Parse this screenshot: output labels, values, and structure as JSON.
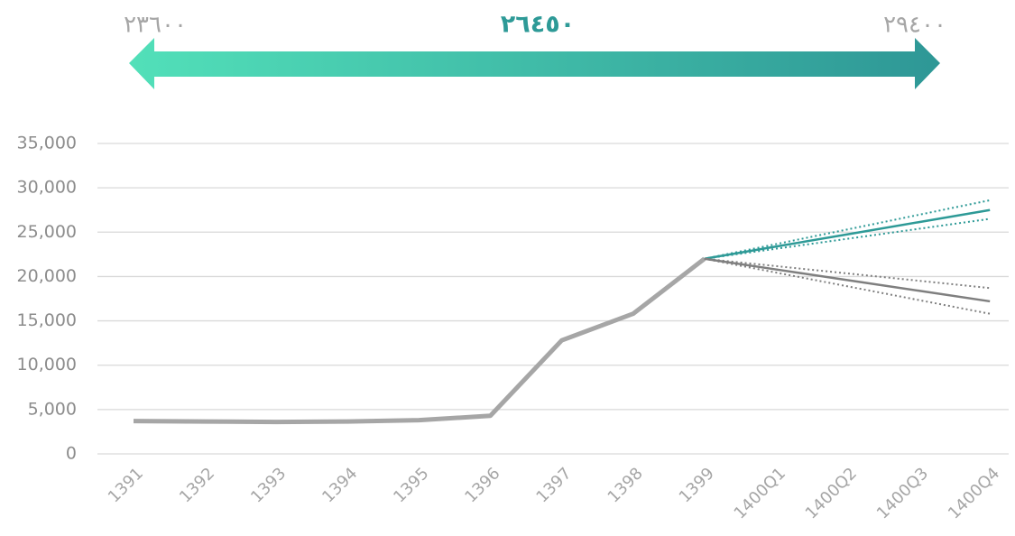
{
  "banner": {
    "left": "٢٣٦٠٠",
    "center": "٢٦٤٥٠",
    "right": "٢٩٤٠٠"
  },
  "chart_data": {
    "type": "line",
    "categories": [
      "1391",
      "1392",
      "1393",
      "1394",
      "1395",
      "1396",
      "1397",
      "1398",
      "1399",
      "1400Q1",
      "1400Q2",
      "1400Q3",
      "1400Q4"
    ],
    "series": [
      {
        "color": "#a6a6a6",
        "width": 5,
        "style": "solid",
        "values": [
          3700,
          3650,
          3600,
          3650,
          3800,
          4300,
          12800,
          15800,
          22000,
          null,
          null,
          null,
          null
        ]
      },
      {
        "color": "#2e9a97",
        "width": 2.5,
        "style": "solid",
        "values": [
          null,
          null,
          null,
          null,
          null,
          null,
          null,
          null,
          22000,
          23375,
          24750,
          26125,
          27500
        ]
      },
      {
        "color": "#2e9a97",
        "width": 2,
        "style": "dotted",
        "values": [
          null,
          null,
          null,
          null,
          null,
          null,
          null,
          null,
          22000,
          23650,
          25300,
          26950,
          28600
        ]
      },
      {
        "color": "#2e9a97",
        "width": 2,
        "style": "dotted",
        "values": [
          null,
          null,
          null,
          null,
          null,
          null,
          null,
          null,
          22000,
          23125,
          24250,
          25375,
          26500
        ]
      },
      {
        "color": "#7f7f7f",
        "width": 2.5,
        "style": "solid",
        "values": [
          null,
          null,
          null,
          null,
          null,
          null,
          null,
          null,
          22000,
          20800,
          19600,
          18400,
          17200
        ]
      },
      {
        "color": "#7f7f7f",
        "width": 2,
        "style": "dotted",
        "values": [
          null,
          null,
          null,
          null,
          null,
          null,
          null,
          null,
          22000,
          21175,
          20350,
          19525,
          18700
        ]
      },
      {
        "color": "#7f7f7f",
        "width": 2,
        "style": "dotted",
        "values": [
          null,
          null,
          null,
          null,
          null,
          null,
          null,
          null,
          22000,
          20450,
          18900,
          17350,
          15800
        ]
      }
    ],
    "ylim": [
      0,
      35000
    ],
    "yticks": [
      0,
      {
        "value": 5000,
        "label": "5,000"
      },
      {
        "value": 10000,
        "label": "10,000"
      },
      {
        "value": 15000,
        "label": "15,000"
      },
      {
        "value": 20000,
        "label": "20,000"
      },
      {
        "value": 25000,
        "label": "25,000"
      },
      {
        "value": 30000,
        "label": "30,000"
      },
      {
        "value": 35000,
        "label": "35,000"
      }
    ],
    "grid": true
  }
}
